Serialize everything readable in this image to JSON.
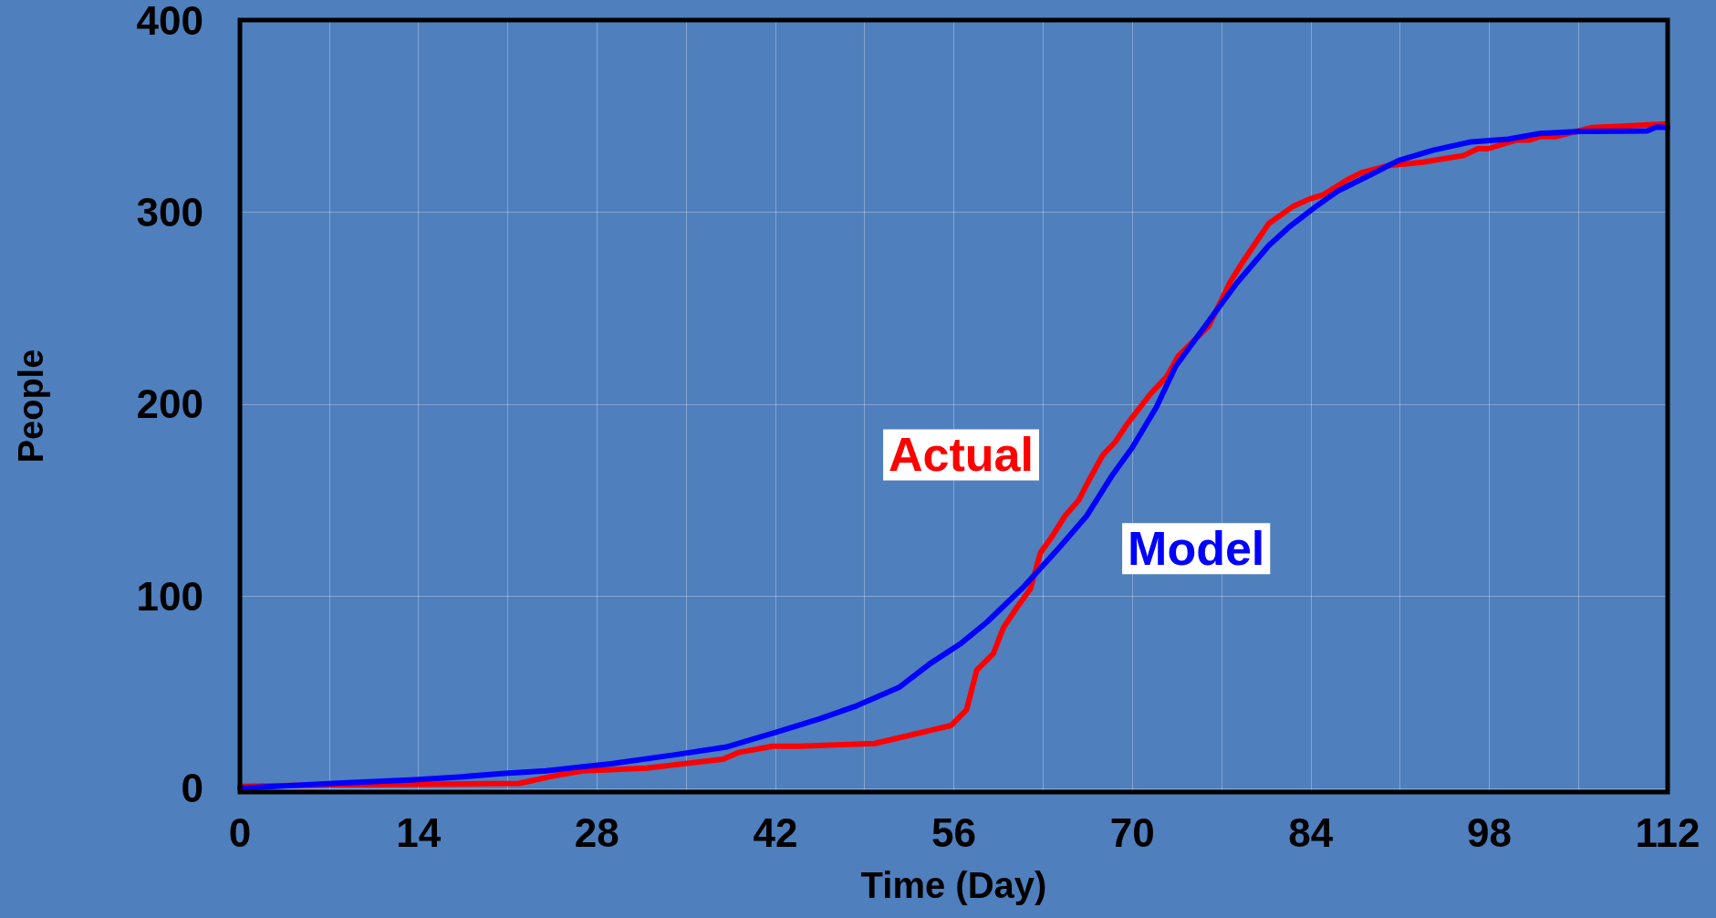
{
  "chart_data": {
    "type": "line",
    "xlabel": "Time (Day)",
    "ylabel": "People",
    "xlim": [
      0,
      112
    ],
    "ylim": [
      -2,
      400
    ],
    "xticks": [
      0,
      {
        "value": 7,
        "label": null
      },
      14,
      {
        "value": 21,
        "label": null
      },
      28,
      {
        "value": 35,
        "label": null
      },
      42,
      {
        "value": 49,
        "label": null
      },
      56,
      {
        "value": 63,
        "label": null
      },
      70,
      {
        "value": 77,
        "label": null
      },
      84,
      {
        "value": 91,
        "label": null
      },
      98,
      {
        "value": 105,
        "label": null
      },
      112
    ],
    "yticks": [
      0,
      100,
      200,
      300,
      400
    ],
    "grid": true,
    "legend": false,
    "marker": "none",
    "line_style": "solid",
    "series": [
      {
        "name": "Actual",
        "color": "#ff0000",
        "x": [
          0,
          7.3,
          13.5,
          21.9,
          24.6,
          27,
          31.9,
          36,
          37.9,
          39.1,
          41.8,
          43.9,
          49.8,
          55.8,
          57,
          57.8,
          59.1,
          59.9,
          61,
          62,
          62.8,
          63.7,
          64.7,
          65.8,
          66.7,
          67.7,
          68.7,
          69.6,
          71.5,
          72.7,
          73.6,
          74.7,
          76,
          77.7,
          78.8,
          80.7,
          82.6,
          83.9,
          85,
          86.9,
          88,
          90.1,
          92.8,
          96,
          97.1,
          97.9,
          100.1,
          101.2,
          102,
          103.2,
          106,
          112
        ],
        "values": [
          1,
          1.8,
          2,
          2.5,
          6.4,
          9.1,
          10.5,
          13.7,
          15.1,
          18.6,
          21.9,
          21.9,
          23.3,
          32.7,
          40.8,
          61.5,
          70.1,
          83.7,
          94.6,
          103.7,
          122.6,
          131,
          141.6,
          150,
          161.6,
          173.6,
          180.6,
          189.7,
          205.9,
          214.3,
          224.9,
          232.2,
          240.7,
          263.8,
          275.4,
          294,
          302.9,
          306.8,
          309.1,
          317,
          320.6,
          324.2,
          326,
          329.5,
          333,
          333,
          337.5,
          337.5,
          339.3,
          339.3,
          344,
          345.9
        ]
      },
      {
        "name": "Model",
        "color": "#0000ff",
        "x": [
          0,
          7.3,
          13.7,
          17.5,
          20.5,
          24,
          26.6,
          29.1,
          34,
          38.1,
          42.2,
          45.5,
          48.4,
          51.7,
          54.1,
          56.6,
          58.6,
          61.5,
          64.2,
          66.4,
          68.4,
          70,
          71.9,
          73.4,
          76.9,
          78.2,
          80.7,
          82.3,
          84.4,
          86.1,
          88.8,
          90.9,
          93.6,
          96.6,
          99.5,
          102,
          105.2,
          110.4,
          111.1,
          112
        ],
        "values": [
          0,
          2.5,
          4.4,
          6,
          7.6,
          9,
          11,
          12.7,
          17.3,
          21.4,
          29.4,
          36.2,
          43,
          52.5,
          64.7,
          75.6,
          86.5,
          105,
          124.8,
          141.6,
          162.7,
          177.4,
          198.5,
          219.7,
          251.4,
          263,
          282.5,
          292.2,
          302.9,
          310.9,
          319.8,
          326.9,
          332.2,
          336.6,
          338,
          341,
          342,
          342.3,
          344.3,
          344
        ]
      }
    ]
  }
}
